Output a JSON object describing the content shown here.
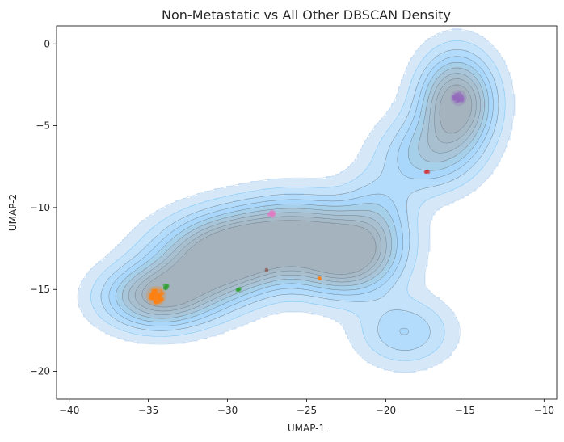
{
  "chart_data": {
    "type": "density",
    "title": "Non-Metastatic vs All Other DBSCAN Density",
    "xlabel": "UMAP-1",
    "ylabel": "UMAP-2",
    "xlim": [
      -40.8,
      -9.2
    ],
    "ylim": [
      -21.7,
      1.1
    ],
    "x_ticks": [
      -40,
      -35,
      -30,
      -25,
      -20,
      -15,
      -10
    ],
    "y_ticks": [
      0,
      -5,
      -10,
      -15,
      -20
    ],
    "grid": false,
    "legend": "none",
    "density_color": "#9fd0f5",
    "contour_color": "#555555",
    "density_modes": [
      {
        "x": -15.5,
        "y": -3.6,
        "level": "high"
      },
      {
        "x": -29,
        "y": -12.5,
        "level": "high"
      },
      {
        "x": -22.5,
        "y": -13,
        "level": "high"
      },
      {
        "x": -34.5,
        "y": -15.5,
        "level": "high"
      },
      {
        "x": -18.5,
        "y": -17.5,
        "level": "medium"
      }
    ],
    "clusters": [
      {
        "x": -34.5,
        "y": -15.4,
        "color": "#ff7f0e",
        "points": 60
      },
      {
        "x": -15.4,
        "y": -3.3,
        "color": "#9467bd",
        "points": 30
      },
      {
        "x": -27.2,
        "y": -10.4,
        "color": "#e377c2",
        "points": 12
      },
      {
        "x": -33.9,
        "y": -14.8,
        "color": "#2ca02c",
        "points": 8
      },
      {
        "x": -29.3,
        "y": -15.0,
        "color": "#2ca02c",
        "points": 5
      },
      {
        "x": -17.4,
        "y": -7.8,
        "color": "#d62728",
        "points": 4
      },
      {
        "x": -24.2,
        "y": -14.3,
        "color": "#ff7f0e",
        "points": 3
      },
      {
        "x": -27.5,
        "y": -13.8,
        "color": "#8c564b",
        "points": 2
      }
    ]
  }
}
